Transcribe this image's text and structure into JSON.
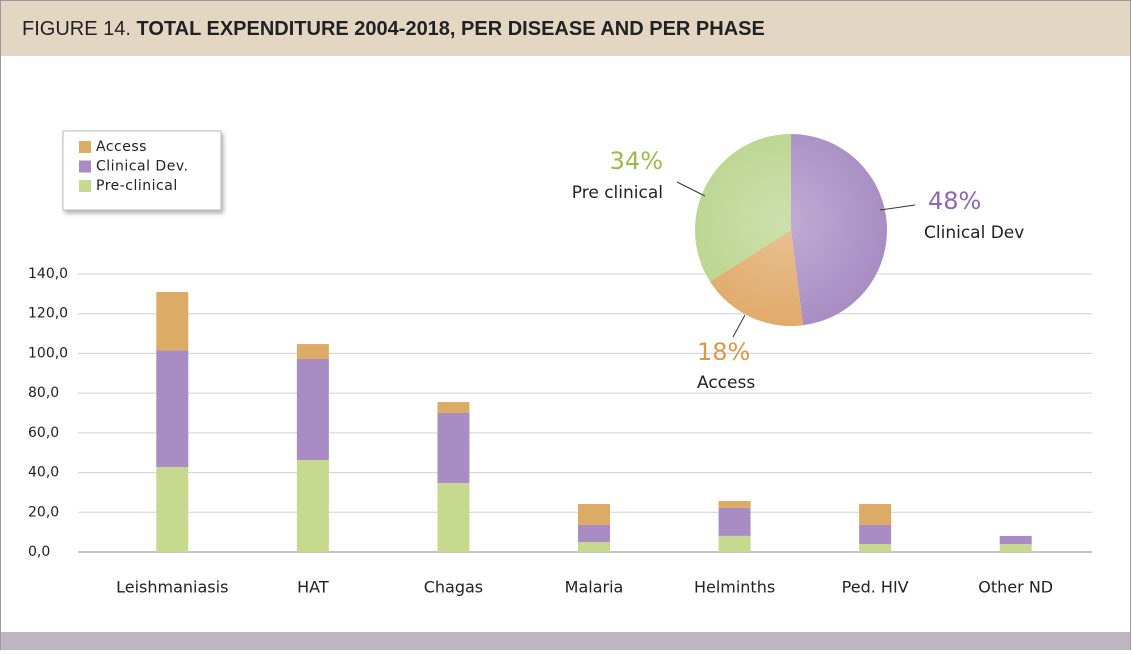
{
  "header": {
    "label": "FIGURE 14.",
    "title": "TOTAL EXPENDITURE 2004-2018, PER DISEASE AND PER PHASE"
  },
  "chart_data": [
    {
      "type": "stacked_bar",
      "categories": [
        "Leishmaniasis",
        "HAT",
        "Chagas",
        "Malaria",
        "Helminths",
        "Ped. HIV",
        "Other ND"
      ],
      "series": [
        {
          "name": "Pre-clinical",
          "color": "#c6d98f",
          "values": [
            42.8,
            46.3,
            34.7,
            5.0,
            8.1,
            4.0,
            4.0
          ]
        },
        {
          "name": "Clinical Dev.",
          "color": "#a98cc4",
          "values": [
            58.7,
            50.9,
            35.3,
            8.6,
            14.1,
            9.6,
            4.1
          ]
        },
        {
          "name": "Access",
          "color": "#dcab66",
          "values": [
            29.4,
            7.5,
            5.5,
            10.6,
            3.5,
            10.6,
            0
          ]
        }
      ],
      "ylim": [
        0,
        140
      ],
      "yticks": [
        {
          "value": 0,
          "label": "0,0"
        },
        {
          "value": 20,
          "label": "20,0"
        },
        {
          "value": 40,
          "label": "40,0"
        },
        {
          "value": 60,
          "label": "60,0"
        },
        {
          "value": 80,
          "label": "80,0"
        },
        {
          "value": 100,
          "label": "100,0"
        },
        {
          "value": 120,
          "label": "120,0"
        },
        {
          "value": 140,
          "label": "140,0"
        }
      ],
      "grid": true,
      "legend": "top-left"
    },
    {
      "type": "pie",
      "categories": [
        "Clinical Dev",
        "Access",
        "Pre clinical"
      ],
      "values": [
        48,
        18,
        34
      ],
      "value_labels": [
        "48%",
        "18%",
        "34%"
      ],
      "colors": [
        "#a68bc2",
        "#e0a866",
        "#b8d38a"
      ],
      "label_colors": [
        "#9067b0",
        "#d9994a",
        "#9bba4f"
      ]
    }
  ]
}
